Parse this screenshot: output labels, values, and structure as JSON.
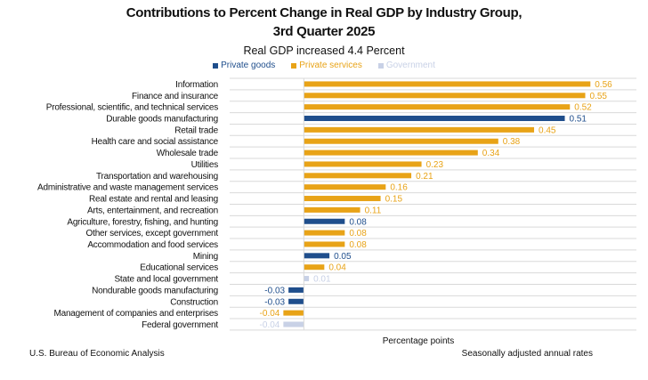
{
  "chart_data": {
    "type": "bar",
    "orientation": "horizontal",
    "title": "Contributions to Percent Change in Real GDP by Industry Group,",
    "title_line2": "3rd Quarter 2025",
    "subtitle": "Real GDP increased 4.4 Percent",
    "xlabel": "Percentage points",
    "xlim": [
      -0.145,
      0.65
    ],
    "grid": true,
    "legend_position": "top",
    "legend": [
      {
        "name": "Private goods",
        "color": "#1f4e8c"
      },
      {
        "name": "Private services",
        "color": "#e8a317"
      },
      {
        "name": "Government",
        "color": "#c8d1e6"
      }
    ],
    "rows": [
      {
        "category": "Information",
        "value": 0.56,
        "group": 1,
        "label": "0.56"
      },
      {
        "category": "Finance and insurance",
        "value": 0.55,
        "group": 1,
        "label": "0.55"
      },
      {
        "category": "Professional, scientific, and technical services",
        "value": 0.52,
        "group": 1,
        "label": "0.52"
      },
      {
        "category": "Durable goods manufacturing",
        "value": 0.51,
        "group": 0,
        "label": "0.51"
      },
      {
        "category": "Retail trade",
        "value": 0.45,
        "group": 1,
        "label": "0.45"
      },
      {
        "category": "Health care and social assistance",
        "value": 0.38,
        "group": 1,
        "label": "0.38"
      },
      {
        "category": "Wholesale trade",
        "value": 0.34,
        "group": 1,
        "label": "0.34"
      },
      {
        "category": "Utilities",
        "value": 0.23,
        "group": 1,
        "label": "0.23"
      },
      {
        "category": "Transportation and warehousing",
        "value": 0.21,
        "group": 1,
        "label": "0.21"
      },
      {
        "category": "Administrative and waste management services",
        "value": 0.16,
        "group": 1,
        "label": "0.16"
      },
      {
        "category": "Real estate and rental and leasing",
        "value": 0.15,
        "group": 1,
        "label": "0.15"
      },
      {
        "category": "Arts, entertainment, and recreation",
        "value": 0.11,
        "group": 1,
        "label": "0.11"
      },
      {
        "category": "Agriculture, forestry, fishing, and hunting",
        "value": 0.08,
        "group": 0,
        "label": "0.08"
      },
      {
        "category": "Other services, except government",
        "value": 0.08,
        "group": 1,
        "label": "0.08"
      },
      {
        "category": "Accommodation and food services",
        "value": 0.08,
        "group": 1,
        "label": "0.08"
      },
      {
        "category": "Mining",
        "value": 0.05,
        "group": 0,
        "label": "0.05"
      },
      {
        "category": "Educational services",
        "value": 0.04,
        "group": 1,
        "label": "0.04"
      },
      {
        "category": "State and local government",
        "value": 0.01,
        "group": 2,
        "label": "0.01"
      },
      {
        "category": "Nondurable goods manufacturing",
        "value": -0.03,
        "group": 0,
        "label": "-0.03"
      },
      {
        "category": "Construction",
        "value": -0.03,
        "group": 0,
        "label": "-0.03"
      },
      {
        "category": "Management of companies and enterprises",
        "value": -0.04,
        "group": 1,
        "label": "-0.04"
      },
      {
        "category": "Federal government",
        "value": -0.04,
        "group": 2,
        "label": "-0.04"
      }
    ]
  },
  "footer": {
    "source": "U.S. Bureau of Economic Analysis",
    "note": "Seasonally adjusted annual rates"
  }
}
